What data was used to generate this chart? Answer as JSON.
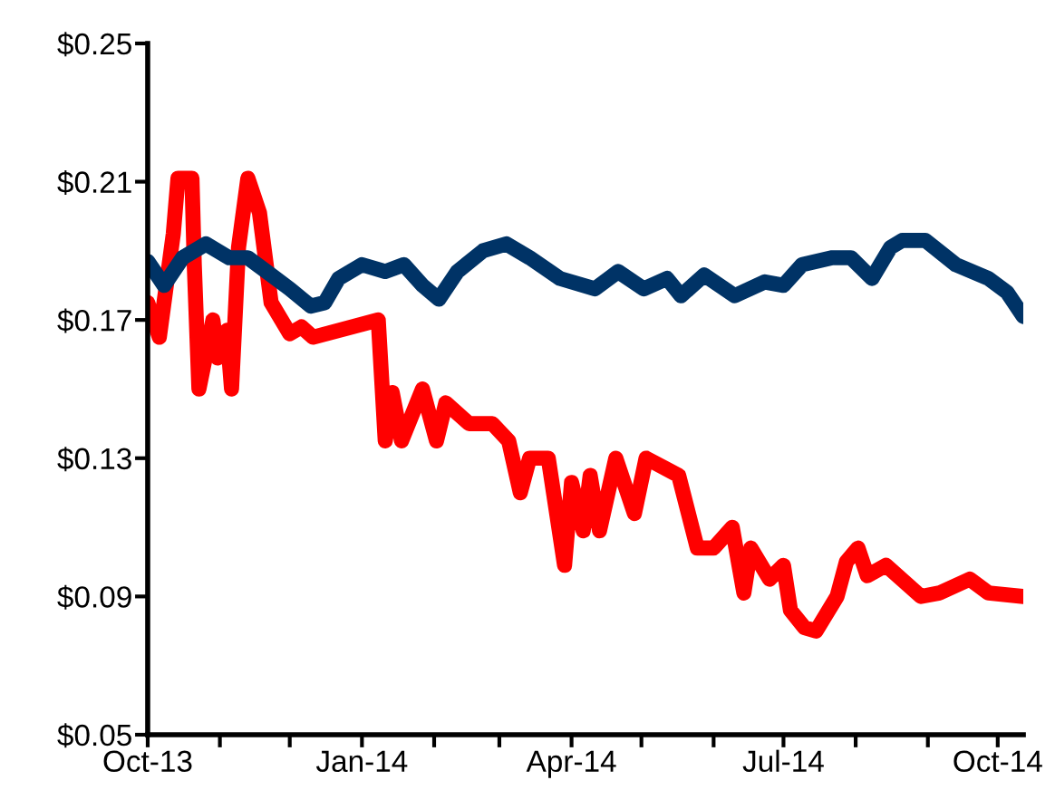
{
  "chart_data": {
    "type": "line",
    "grid": false,
    "marker": "none",
    "line_style": "solid",
    "xlim": [
      "2013-10-01",
      "2014-10-12"
    ],
    "xticks": [
      {
        "value": "2013-10-01",
        "label": "Oct-13"
      },
      {
        "value": "2013-11-01",
        "label": null
      },
      {
        "value": "2013-12-01",
        "label": null
      },
      {
        "value": "2014-01-01",
        "label": "Jan-14"
      },
      {
        "value": "2014-02-01",
        "label": null
      },
      {
        "value": "2014-03-01",
        "label": null
      },
      {
        "value": "2014-04-01",
        "label": "Apr-14"
      },
      {
        "value": "2014-05-01",
        "label": null
      },
      {
        "value": "2014-06-01",
        "label": null
      },
      {
        "value": "2014-07-01",
        "label": "Jul-14"
      },
      {
        "value": "2014-08-01",
        "label": null
      },
      {
        "value": "2014-09-01",
        "label": null
      },
      {
        "value": "2014-10-01",
        "label": "Oct-14"
      }
    ],
    "ylim": [
      0.05,
      0.25
    ],
    "yticks": [
      {
        "value": 0.05,
        "label": "$0.05"
      },
      {
        "value": 0.09,
        "label": "$0.09"
      },
      {
        "value": 0.13,
        "label": "$0.13"
      },
      {
        "value": 0.17,
        "label": "$0.17"
      },
      {
        "value": 0.21,
        "label": "$0.21"
      },
      {
        "value": 0.25,
        "label": "$0.25"
      }
    ],
    "series": [
      {
        "color": "#ff0000",
        "x": [
          "2013-10-01",
          "2013-10-06",
          "2013-10-12",
          "2013-10-14",
          "2013-10-20",
          "2013-10-21",
          "2013-10-23",
          "2013-10-29",
          "2013-10-31",
          "2013-11-04",
          "2013-11-06",
          "2013-11-09",
          "2013-11-13",
          "2013-11-18",
          "2013-11-23",
          "2013-12-01",
          "2013-12-06",
          "2013-12-11",
          "2014-01-08",
          "2014-01-11",
          "2014-01-14",
          "2014-01-18",
          "2014-01-27",
          "2014-02-02",
          "2014-02-06",
          "2014-02-16",
          "2014-02-26",
          "2014-03-05",
          "2014-03-10",
          "2014-03-14",
          "2014-03-22",
          "2014-03-29",
          "2014-04-01",
          "2014-04-06",
          "2014-04-09",
          "2014-04-13",
          "2014-04-20",
          "2014-04-28",
          "2014-05-03",
          "2014-05-17",
          "2014-05-25",
          "2014-06-01",
          "2014-06-09",
          "2014-06-14",
          "2014-06-17",
          "2014-06-25",
          "2014-07-01",
          "2014-07-04",
          "2014-07-10",
          "2014-07-15",
          "2014-07-24",
          "2014-07-28",
          "2014-08-02",
          "2014-08-06",
          "2014-08-14",
          "2014-08-29",
          "2014-09-06",
          "2014-09-19",
          "2014-09-27",
          "2014-10-12"
        ],
        "values": [
          0.175,
          0.165,
          0.195,
          0.211,
          0.211,
          0.186,
          0.15,
          0.17,
          0.159,
          0.167,
          0.15,
          0.191,
          0.211,
          0.201,
          0.175,
          0.166,
          0.168,
          0.165,
          0.17,
          0.135,
          0.149,
          0.135,
          0.15,
          0.135,
          0.146,
          0.14,
          0.14,
          0.135,
          0.12,
          0.13,
          0.13,
          0.099,
          0.123,
          0.109,
          0.125,
          0.109,
          0.13,
          0.114,
          0.13,
          0.125,
          0.104,
          0.104,
          0.11,
          0.091,
          0.104,
          0.095,
          0.099,
          0.086,
          0.081,
          0.08,
          0.09,
          0.1,
          0.104,
          0.096,
          0.099,
          0.09,
          0.091,
          0.095,
          0.091,
          0.09
        ]
      },
      {
        "color": "#003366",
        "x": [
          "2013-10-01",
          "2013-10-08",
          "2013-10-16",
          "2013-10-26",
          "2013-11-05",
          "2013-11-13",
          "2013-11-23",
          "2013-12-01",
          "2013-12-10",
          "2013-12-16",
          "2013-12-22",
          "2014-01-01",
          "2014-01-11",
          "2014-01-19",
          "2014-01-27",
          "2014-02-03",
          "2014-02-11",
          "2014-02-22",
          "2014-03-04",
          "2014-03-14",
          "2014-03-27",
          "2014-04-11",
          "2014-04-21",
          "2014-05-02",
          "2014-05-12",
          "2014-05-18",
          "2014-05-28",
          "2014-06-10",
          "2014-06-23",
          "2014-07-01",
          "2014-07-09",
          "2014-07-22",
          "2014-07-30",
          "2014-08-08",
          "2014-08-16",
          "2014-08-21",
          "2014-08-31",
          "2014-09-13",
          "2014-09-27",
          "2014-10-05",
          "2014-10-12"
        ],
        "values": [
          0.187,
          0.18,
          0.188,
          0.192,
          0.188,
          0.188,
          0.183,
          0.179,
          0.174,
          0.175,
          0.182,
          0.186,
          0.184,
          0.186,
          0.18,
          0.176,
          0.184,
          0.19,
          0.192,
          0.188,
          0.182,
          0.179,
          0.184,
          0.179,
          0.182,
          0.177,
          0.183,
          0.177,
          0.181,
          0.18,
          0.186,
          0.188,
          0.188,
          0.182,
          0.191,
          0.193,
          0.193,
          0.186,
          0.182,
          0.178,
          0.171
        ]
      }
    ]
  }
}
